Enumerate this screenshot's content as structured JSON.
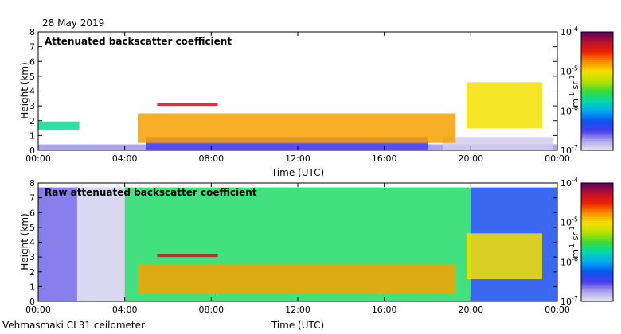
{
  "date": "28 May 2019",
  "footer": "Vehmasmaki CL31 ceilometer",
  "colors": {
    "background": "#ffffff",
    "axis": "#000000"
  },
  "chart_data": [
    {
      "type": "heatmap",
      "title": "Attenuated backscatter coefficient",
      "xlabel": "Time (UTC)",
      "ylabel": "Height (km)",
      "xlim": [
        0,
        24
      ],
      "ylim": [
        0,
        8
      ],
      "xticks": [
        0,
        4,
        8,
        12,
        16,
        20,
        24
      ],
      "xtick_labels": [
        "00:00",
        "04:00",
        "08:00",
        "12:00",
        "16:00",
        "20:00",
        "00:00"
      ],
      "yticks": [
        0,
        1,
        2,
        3,
        4,
        5,
        6,
        7,
        8
      ],
      "ytick_labels": [
        "0",
        "1",
        "2",
        "3",
        "4",
        "5",
        "6",
        "7",
        "8"
      ],
      "colorbar": {
        "scale": "log",
        "range": [
          1e-07,
          0.0001
        ],
        "ticks": [
          {
            "base": "10",
            "exp": "-4"
          },
          {
            "base": "10",
            "exp": "-5"
          },
          {
            "base": "10",
            "exp": "-6"
          },
          {
            "base": "10",
            "exp": "-7"
          }
        ],
        "unit_parts": [
          "m",
          "-1",
          " sr",
          "-1"
        ],
        "colormap": [
          "#e8e8f0",
          "#b0a8ec",
          "#4a3ee8",
          "#0a52f0",
          "#00a8f0",
          "#00d8b0",
          "#38dc38",
          "#b8e000",
          "#f4e000",
          "#f89000",
          "#f02000",
          "#b81030",
          "#5c005c"
        ]
      },
      "features": [
        {
          "name": "surface aerosol layer",
          "time": [
            0,
            24
          ],
          "height_km": [
            0,
            0.4
          ],
          "log10_beta": -6.7
        },
        {
          "name": "evening boundary layer",
          "time": [
            18.7,
            23.8
          ],
          "height_km": [
            0,
            0.9
          ],
          "log10_beta": -6.9
        },
        {
          "name": "convective mixed layer",
          "time": [
            5,
            18
          ],
          "height_km": [
            0,
            0.9
          ],
          "log10_beta": -6.5
        },
        {
          "name": "residual layer",
          "time": [
            0,
            1.9
          ],
          "height_km": [
            1.4,
            1.95
          ],
          "log10_beta": -5.7
        },
        {
          "name": "mid-level cloud",
          "time": [
            5.5,
            8.3
          ],
          "height_km": [
            3.0,
            3.2
          ],
          "log10_beta": -4.3
        },
        {
          "name": "boundary-layer cloud top",
          "time": [
            4.6,
            19.3
          ],
          "height_km": [
            0.5,
            2.5
          ],
          "log10_beta": -4.8
        },
        {
          "name": "descending cloud layer",
          "time": [
            19.8,
            23.3
          ],
          "height_km": [
            1.5,
            4.6
          ],
          "log10_beta": -5.0
        }
      ]
    },
    {
      "type": "heatmap",
      "title": "Raw attenuated backscatter coefficient",
      "xlabel": "Time (UTC)",
      "ylabel": "Height (km)",
      "xlim": [
        0,
        24
      ],
      "ylim": [
        0,
        8
      ],
      "xticks": [
        0,
        4,
        8,
        12,
        16,
        20,
        24
      ],
      "xtick_labels": [
        "00:00",
        "04:00",
        "08:00",
        "12:00",
        "16:00",
        "20:00",
        "00:00"
      ],
      "yticks": [
        0,
        1,
        2,
        3,
        4,
        5,
        6,
        7,
        8
      ],
      "ytick_labels": [
        "0",
        "1",
        "2",
        "3",
        "4",
        "5",
        "6",
        "7",
        "8"
      ],
      "colorbar": {
        "scale": "log",
        "range": [
          1e-07,
          0.0001
        ],
        "ticks": [
          {
            "base": "10",
            "exp": "-4"
          },
          {
            "base": "10",
            "exp": "-5"
          },
          {
            "base": "10",
            "exp": "-6"
          },
          {
            "base": "10",
            "exp": "-7"
          }
        ],
        "unit_parts": [
          "m",
          "-1",
          " sr",
          "-1"
        ],
        "colormap": [
          "#e8e8f0",
          "#b0a8ec",
          "#4a3ee8",
          "#0a52f0",
          "#00a8f0",
          "#00d8b0",
          "#38dc38",
          "#b8e000",
          "#f4e000",
          "#f89000",
          "#f02000",
          "#b81030",
          "#5c005c"
        ]
      },
      "features": [
        {
          "name": "daytime background noise",
          "time": [
            4,
            20
          ],
          "height_km": [
            0,
            7.7
          ],
          "log10_beta": -5.6
        },
        {
          "name": "night background noise",
          "time": [
            0,
            4
          ],
          "height_km": [
            0,
            7.7
          ],
          "log10_beta": -6.6
        },
        {
          "name": "low-noise window",
          "time": [
            1.8,
            4.0
          ],
          "height_km": [
            0,
            7.7
          ],
          "log10_beta": -7.0
        },
        {
          "name": "evening noise",
          "time": [
            20,
            24
          ],
          "height_km": [
            0,
            7.7
          ],
          "log10_beta": -6.3
        },
        {
          "name": "mid-level cloud",
          "time": [
            5.5,
            8.3
          ],
          "height_km": [
            3.0,
            3.2
          ],
          "log10_beta": -4.3
        },
        {
          "name": "boundary-layer cloud top",
          "time": [
            4.6,
            19.3
          ],
          "height_km": [
            0.5,
            2.5
          ],
          "log10_beta": -4.8
        },
        {
          "name": "descending cloud layer",
          "time": [
            19.8,
            23.3
          ],
          "height_km": [
            1.5,
            4.6
          ],
          "log10_beta": -5.0
        }
      ]
    }
  ]
}
